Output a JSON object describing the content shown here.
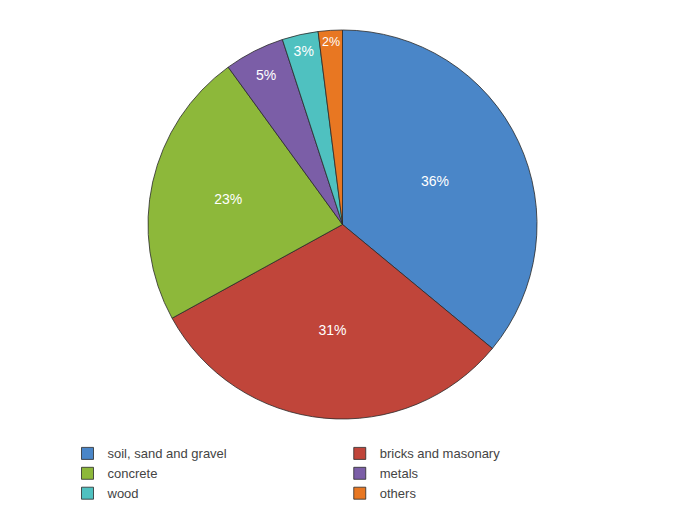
{
  "chart_data": {
    "type": "pie",
    "categories": [
      "soil, sand and gravel",
      "bricks and masonary",
      "concrete",
      "metals",
      "wood",
      "others"
    ],
    "values": [
      36,
      31,
      23,
      5,
      3,
      2
    ],
    "value_labels": [
      "36%",
      "31%",
      "23%",
      "5%",
      "3%",
      "2%"
    ],
    "colors": [
      "#4a86c8",
      "#c0453a",
      "#8db83a",
      "#7b5ea7",
      "#4fc1c0",
      "#e87722"
    ],
    "data_labels": true,
    "legend": "bottom"
  }
}
